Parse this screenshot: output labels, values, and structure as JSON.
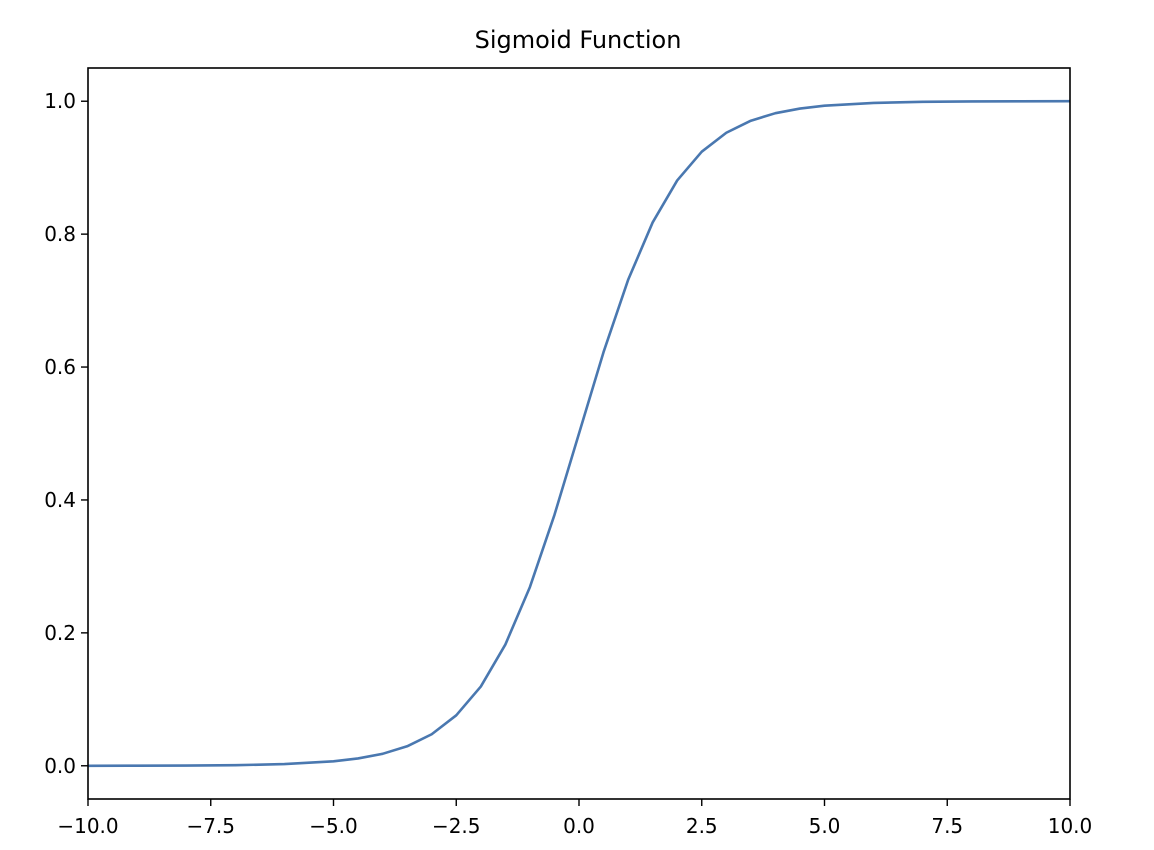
{
  "chart_data": {
    "type": "line",
    "title": "Sigmoid Function",
    "xlabel": "",
    "ylabel": "",
    "xlim": [
      -10.0,
      10.0
    ],
    "ylim": [
      -0.05,
      1.05
    ],
    "x_ticks": [
      -10.0,
      -7.5,
      -5.0,
      -2.5,
      0.0,
      2.5,
      5.0,
      7.5,
      10.0
    ],
    "x_tick_labels": [
      "−10.0",
      "−7.5",
      "−5.0",
      "−2.5",
      "0.0",
      "2.5",
      "5.0",
      "7.5",
      "10.0"
    ],
    "y_ticks": [
      0.0,
      0.2,
      0.4,
      0.6,
      0.8,
      1.0
    ],
    "y_tick_labels": [
      "0.0",
      "0.2",
      "0.4",
      "0.6",
      "0.8",
      "1.0"
    ],
    "grid": false,
    "series": [
      {
        "color": "#4a78b0",
        "x": [
          -10.0,
          -9.0,
          -8.0,
          -7.0,
          -6.0,
          -5.0,
          -4.5,
          -4.0,
          -3.5,
          -3.0,
          -2.5,
          -2.0,
          -1.5,
          -1.0,
          -0.5,
          0.0,
          0.5,
          1.0,
          1.5,
          2.0,
          2.5,
          3.0,
          3.5,
          4.0,
          4.5,
          5.0,
          6.0,
          7.0,
          8.0,
          9.0,
          10.0
        ],
        "y": [
          0.0,
          0.0001,
          0.0003,
          0.0009,
          0.0025,
          0.0067,
          0.011,
          0.018,
          0.0293,
          0.0474,
          0.0759,
          0.1192,
          0.1824,
          0.2689,
          0.3775,
          0.5,
          0.6225,
          0.7311,
          0.8176,
          0.8808,
          0.9241,
          0.9526,
          0.9707,
          0.982,
          0.989,
          0.9933,
          0.9975,
          0.9991,
          0.9997,
          0.9999,
          1.0
        ]
      }
    ]
  }
}
